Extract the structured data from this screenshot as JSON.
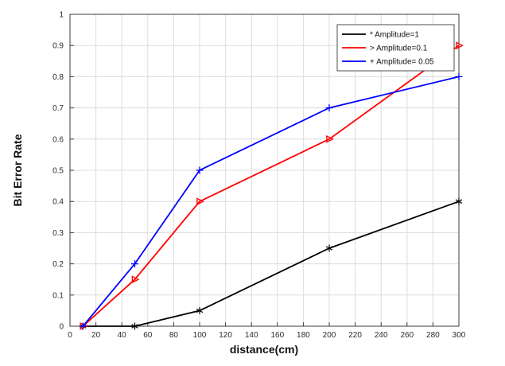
{
  "chart_data": {
    "type": "line",
    "title": "",
    "xlabel": "distance(cm)",
    "ylabel": "Bit Error Rate",
    "x": [
      10,
      50,
      100,
      200,
      300
    ],
    "series": [
      {
        "name": "* Amplitude=1",
        "color": "#000000",
        "marker": "asterisk",
        "values": [
          0,
          0,
          0.05,
          0.25,
          0.4
        ]
      },
      {
        "name": "> Amplitude=0.1",
        "color": "#ff0000",
        "marker": "triangle-right",
        "values": [
          0,
          0.15,
          0.4,
          0.6,
          0.9
        ]
      },
      {
        "name": "+ Amplitude= 0.05",
        "color": "#0000ff",
        "marker": "plus",
        "values": [
          0,
          0.2,
          0.5,
          0.7,
          0.8
        ]
      }
    ],
    "xlim": [
      0,
      300
    ],
    "ylim": [
      0,
      1
    ],
    "xticks": [
      0,
      20,
      40,
      60,
      80,
      100,
      120,
      140,
      160,
      180,
      200,
      220,
      240,
      260,
      280,
      300
    ],
    "yticks": [
      0,
      0.1,
      0.2,
      0.3,
      0.4,
      0.5,
      0.6,
      0.7,
      0.8,
      0.9,
      1
    ],
    "grid": true,
    "legend_position": "top-right",
    "colors": {
      "grid": "#dcdcdc",
      "axis": "#3b3b3b",
      "tick_text": "#2b2b2b",
      "label_text": "#111111",
      "legend_border": "#4d4d4d",
      "background": "#ffffff"
    }
  }
}
